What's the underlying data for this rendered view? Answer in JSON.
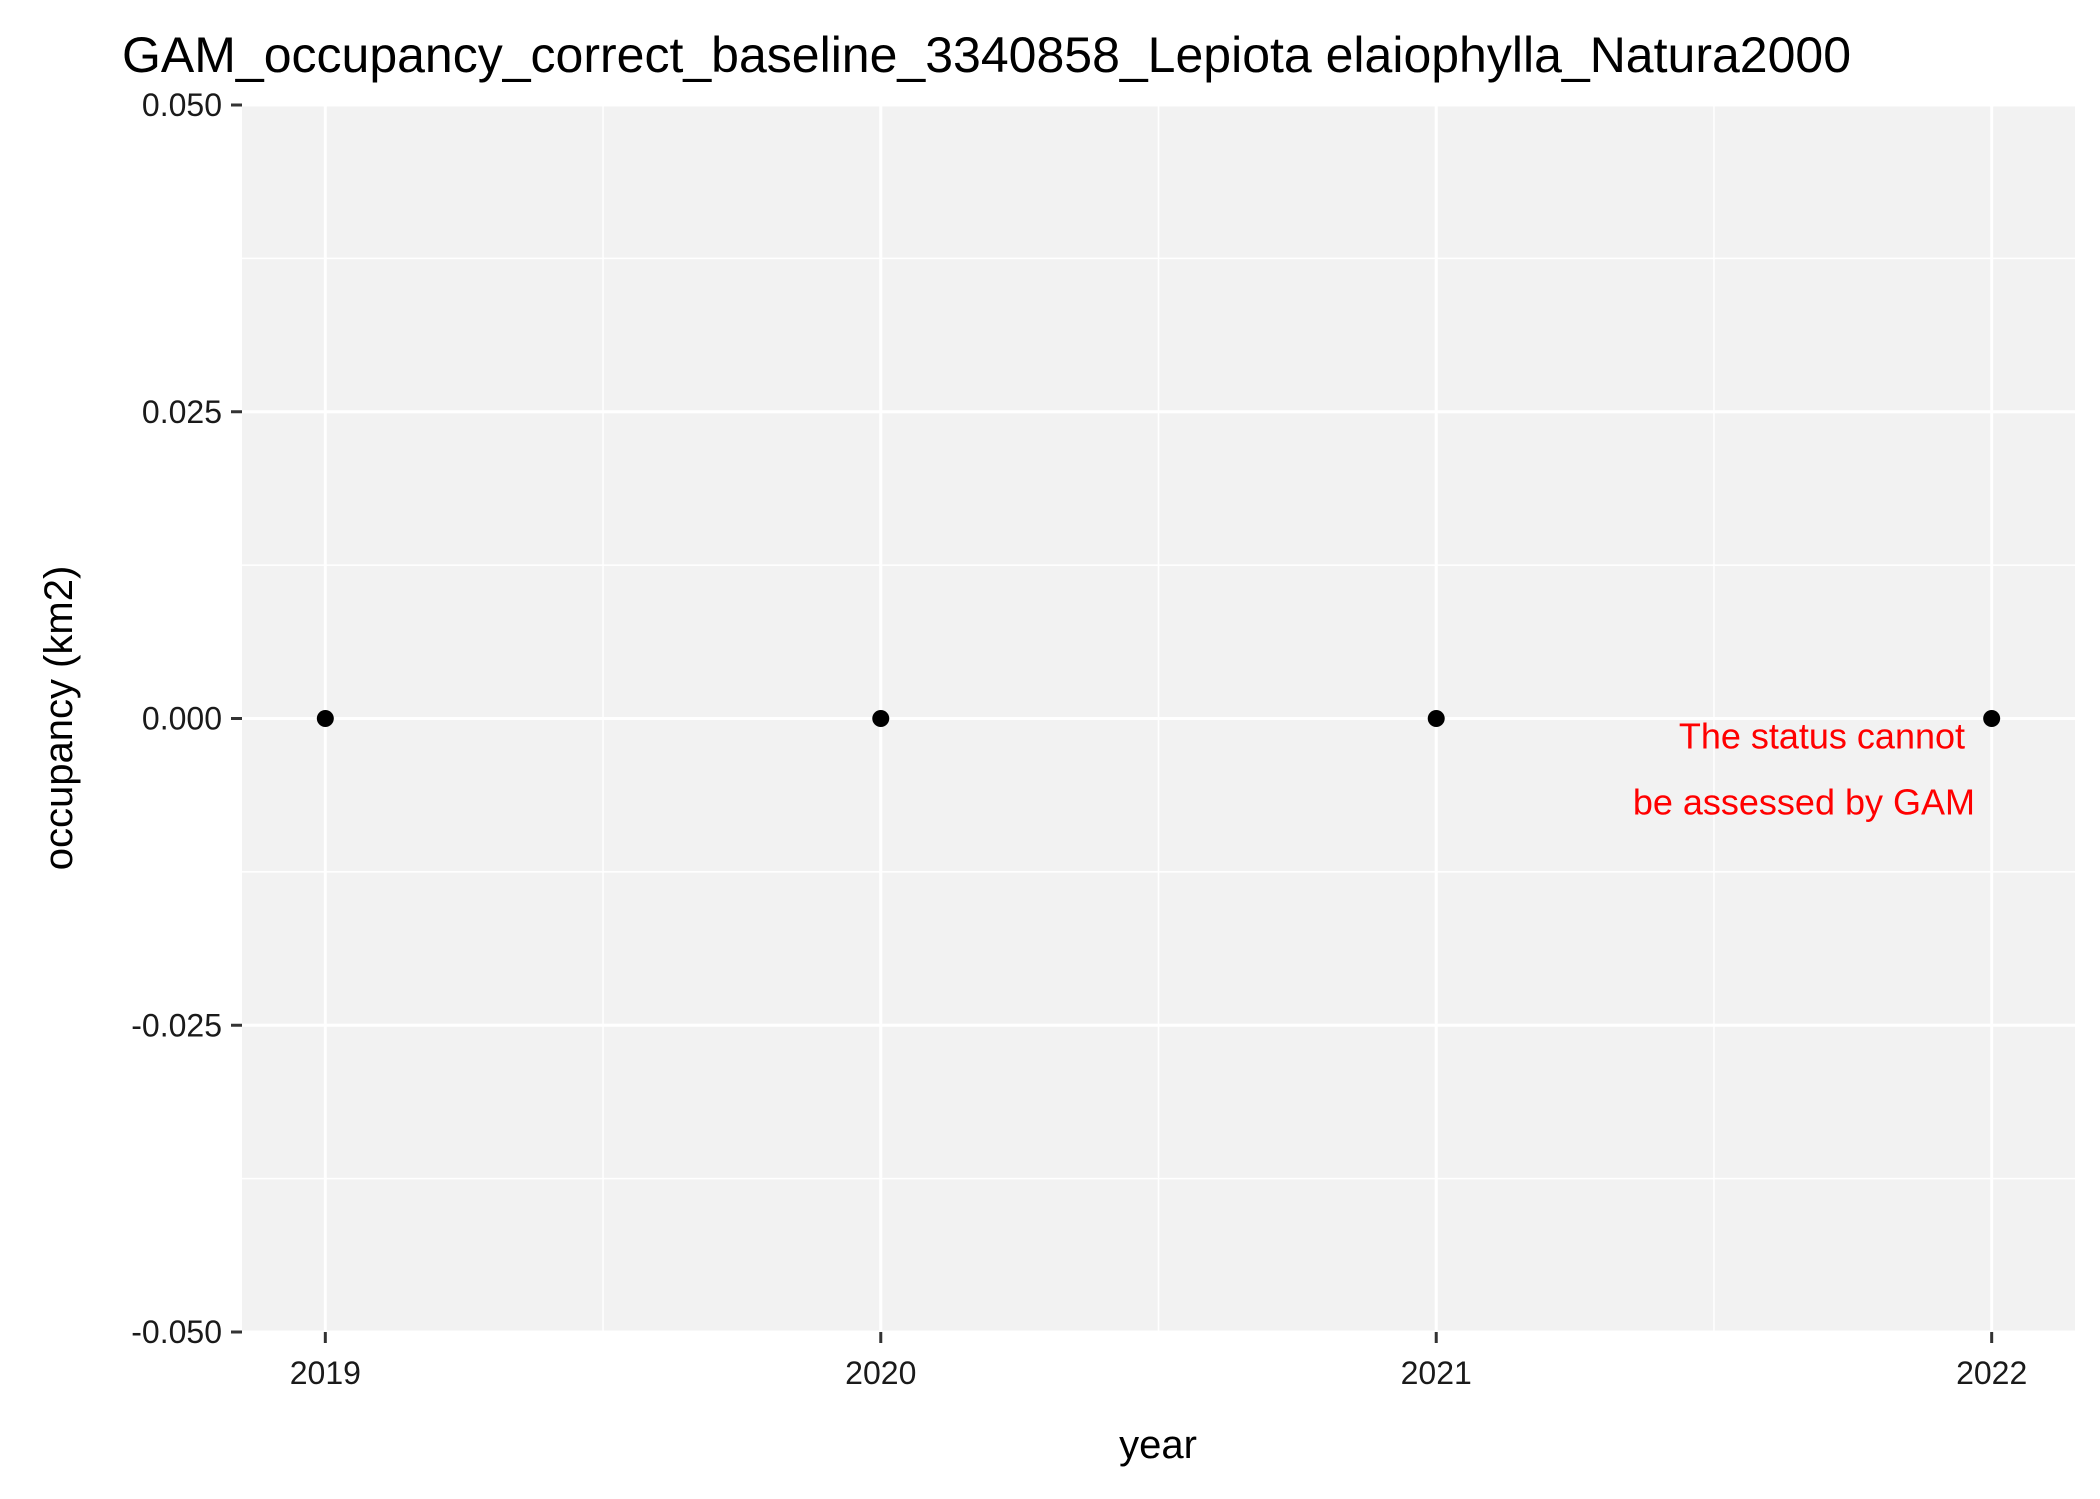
{
  "chart_data": {
    "type": "scatter",
    "title": "GAM_occupancy_correct_baseline_3340858_Lepiota elaiophylla_Natura2000",
    "xlabel": "year",
    "ylabel": "occupancy (km2)",
    "x": [
      2019,
      2020,
      2021,
      2022
    ],
    "y": [
      0,
      0,
      0,
      0
    ],
    "xlim": [
      2018.85,
      2022.15
    ],
    "ylim": [
      -0.05,
      0.05
    ],
    "x_ticks": [
      2019,
      2020,
      2021,
      2022
    ],
    "x_tick_labels": [
      "2019",
      "2020",
      "2021",
      "2022"
    ],
    "y_ticks": [
      -0.05,
      -0.025,
      0,
      0.025,
      0.05
    ],
    "y_tick_labels": [
      "-0.050",
      "-0.025",
      "0.000",
      "0.025",
      "0.050"
    ],
    "grid": true,
    "annotation": {
      "lines": [
        "The status cannot",
        "be assessed by GAM"
      ],
      "color": "#ff0000",
      "x": 2021.97,
      "y": 0
    },
    "point_color": "#000000",
    "panel_background": "#f2f2f2",
    "grid_color": "#ffffff"
  }
}
